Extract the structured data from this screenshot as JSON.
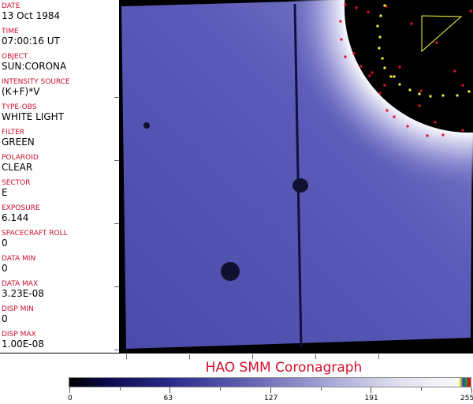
{
  "metadata": [
    {
      "label": "DATE",
      "value": "13 Oct 1984"
    },
    {
      "label": "TIME",
      "value": "07:00:16 UT"
    },
    {
      "label": "OBJECT",
      "value": "SUN:CORONA"
    },
    {
      "label": "INTENSITY SOURCE",
      "value": "(K+F)*V"
    },
    {
      "label": "TYPE-OBS",
      "value": "WHITE LIGHT"
    },
    {
      "label": "FILTER",
      "value": "GREEN"
    },
    {
      "label": "POLAROID",
      "value": "CLEAR"
    },
    {
      "label": "SECTOR",
      "value": "E"
    },
    {
      "label": "EXPOSURE",
      "value": "6.144"
    },
    {
      "label": "SPACECRAFT ROLL",
      "value": "0"
    },
    {
      "label": "DATA MIN",
      "value": "0"
    },
    {
      "label": "DATA MAX",
      "value": "3.23E-08"
    },
    {
      "label": "DISP MIN",
      "value": "0"
    },
    {
      "label": "DISP MAX",
      "value": "1.00E-08"
    }
  ],
  "title": "HAO  SMM Coronagraph",
  "colorbar": {
    "ticks": [
      "0",
      "63",
      "127",
      "191",
      "255"
    ],
    "min": 0,
    "max": 255,
    "colors": {
      "low": "#000000",
      "mid": "#6464b4",
      "high": "#fafafa",
      "accent": "#d0102a"
    }
  }
}
